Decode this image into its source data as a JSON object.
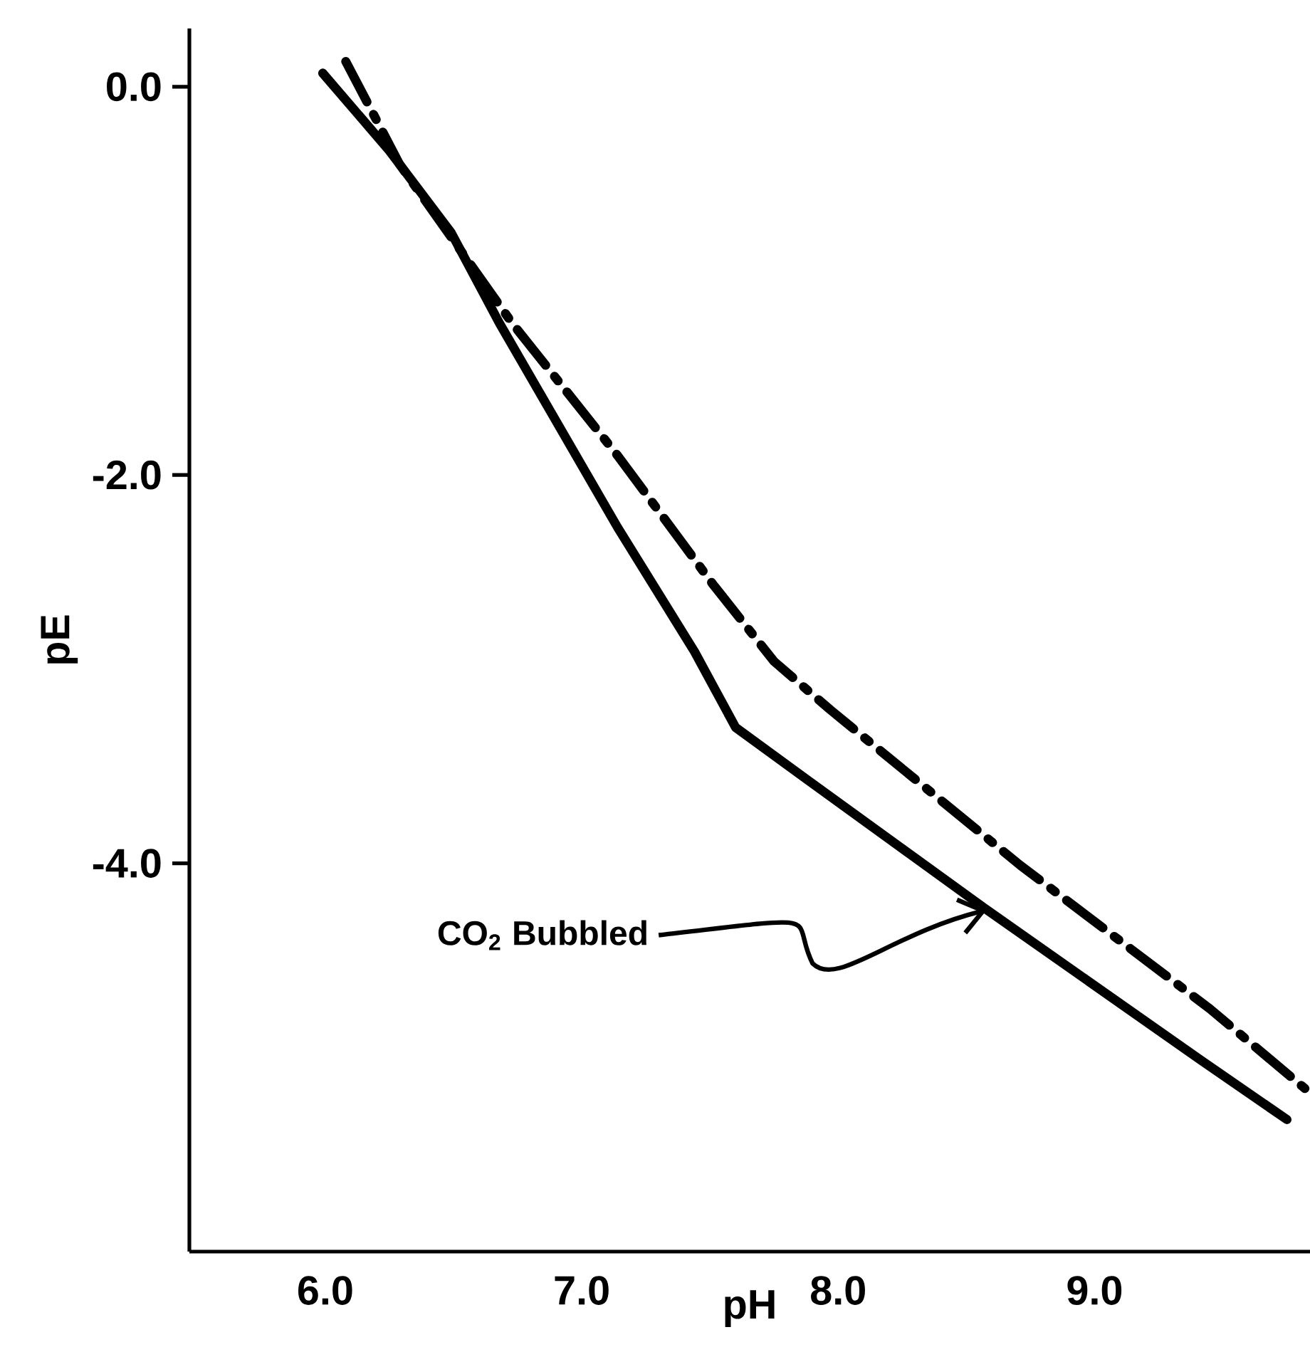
{
  "chart_data": {
    "type": "line",
    "xlabel": "pH",
    "ylabel": "pE",
    "xlim": [
      5.47,
      9.84
    ],
    "ylim": [
      -6.0,
      0.3
    ],
    "xticks": [
      {
        "value": 6.0,
        "label": "6.0"
      },
      {
        "value": 7.0,
        "label": "7.0"
      },
      {
        "value": 8.0,
        "label": "8.0"
      },
      {
        "value": 9.0,
        "label": "9.0"
      }
    ],
    "yticks": [
      {
        "value": 0.0,
        "label": "0.0"
      },
      {
        "value": -2.0,
        "label": "-2.0"
      },
      {
        "value": -4.0,
        "label": "-4.0"
      }
    ],
    "grid": false,
    "marker": "none",
    "series": [
      {
        "color": "#000000",
        "line_style": "solid",
        "x": [
          5.99,
          6.25,
          6.49,
          6.68,
          7.14,
          7.44,
          7.6,
          7.88,
          8.58,
          9.41,
          9.75
        ],
        "values": [
          0.07,
          -0.33,
          -0.75,
          -1.22,
          -2.27,
          -2.91,
          -3.3,
          -3.57,
          -4.24,
          -5.01,
          -5.32
        ]
      },
      {
        "color": "#000000",
        "line_style": "dashed",
        "x": [
          6.08,
          6.29,
          6.73,
          7.14,
          7.51,
          7.75,
          7.97,
          8.71,
          9.45,
          9.82
        ],
        "values": [
          0.13,
          -0.4,
          -1.22,
          -1.9,
          -2.56,
          -2.96,
          -3.21,
          -4.01,
          -4.75,
          -5.16
        ]
      }
    ],
    "annotations": [
      {
        "text": "CO$_{2}$ Bubbled",
        "x": 8.58,
        "y": -4.24
      }
    ]
  }
}
